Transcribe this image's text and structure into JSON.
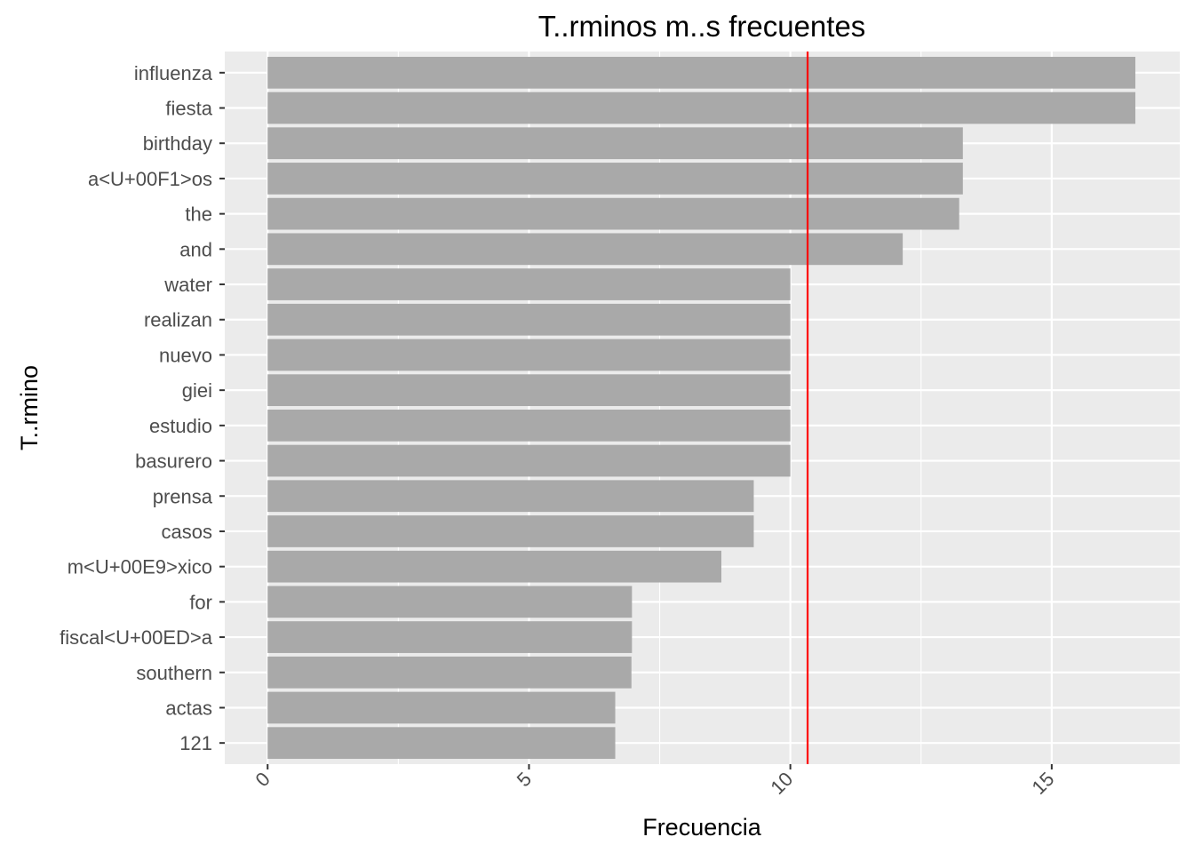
{
  "chart_data": {
    "type": "bar",
    "orientation": "horizontal",
    "title": "T..rminos m..s frecuentes",
    "xlabel": "Frecuencia",
    "ylabel": "T..rmino",
    "categories": [
      "influenza",
      "fiesta",
      "birthday",
      "a<U+00F1>os",
      "the",
      "and",
      "water",
      "realizan",
      "nuevo",
      "giei",
      "estudio",
      "basurero",
      "prensa",
      "casos",
      "m<U+00E9>xico",
      "for",
      "fiscal<U+00ED>a",
      "southern",
      "actas",
      "121"
    ],
    "values": [
      16.6,
      16.6,
      13.3,
      13.3,
      13.23,
      12.15,
      10.0,
      10.0,
      10.0,
      10.0,
      10.0,
      10.0,
      9.3,
      9.3,
      8.68,
      6.97,
      6.97,
      6.96,
      6.65,
      6.65
    ],
    "xlim": [
      -0.82,
      17.45
    ],
    "xticks": [
      "0",
      "5",
      "10",
      "15"
    ],
    "reference_line": {
      "value": 10.33,
      "color": "#ff0000"
    },
    "bar_color": "#a9a9a9",
    "panel_color": "#ebebeb",
    "grid": true,
    "legend": "none"
  }
}
